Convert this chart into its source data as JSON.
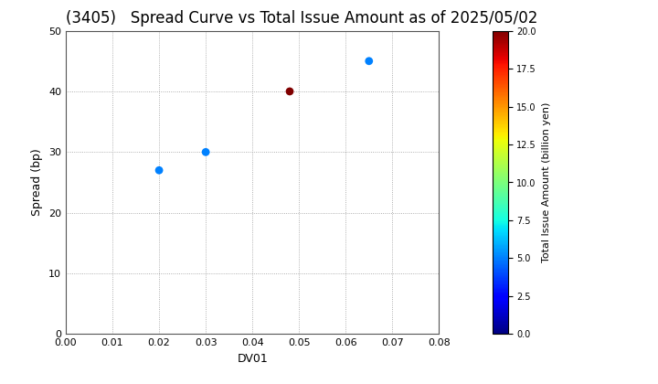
{
  "title": "(3405)   Spread Curve vs Total Issue Amount as of 2025/05/02",
  "points": [
    {
      "dv01": 0.02,
      "spread": 27,
      "amount": 5.0
    },
    {
      "dv01": 0.03,
      "spread": 30,
      "amount": 5.0
    },
    {
      "dv01": 0.048,
      "spread": 40,
      "amount": 20.0
    },
    {
      "dv01": 0.065,
      "spread": 45,
      "amount": 5.0
    }
  ],
  "xlim": [
    0.0,
    0.08
  ],
  "ylim": [
    0,
    50
  ],
  "xlabel": "DV01",
  "ylabel": "Spread (bp)",
  "colorbar_label": "Total Issue Amount (billion yen)",
  "colorbar_min": 0.0,
  "colorbar_max": 20.0,
  "marker_size": 40,
  "background_color": "#ffffff",
  "grid_color": "#999999",
  "title_fontsize": 12,
  "xticks": [
    0.0,
    0.01,
    0.02,
    0.03,
    0.04,
    0.05,
    0.06,
    0.07,
    0.08
  ],
  "yticks": [
    0,
    10,
    20,
    30,
    40,
    50
  ],
  "colorbar_ticks": [
    0.0,
    2.5,
    5.0,
    7.5,
    10.0,
    12.5,
    15.0,
    17.5,
    20.0
  ]
}
